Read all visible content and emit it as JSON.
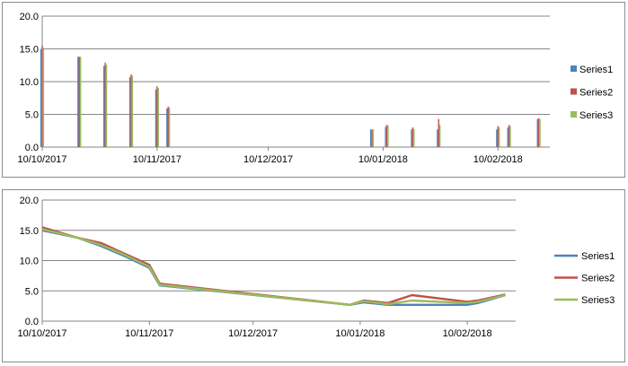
{
  "colors": {
    "series1": "#4f81bd",
    "series2": "#c0504d",
    "series3": "#9bbb59",
    "gridline": "#868686",
    "axis": "#868686",
    "frame_border": "#8c8c8c"
  },
  "chart_data": [
    {
      "type": "bar",
      "title": "",
      "xlabel": "",
      "ylabel": "",
      "x_axis_type": "date",
      "xlim": [
        "2017-10-10",
        "2018-02-24"
      ],
      "ylim": [
        0,
        20
      ],
      "y_ticks": [
        "0.0",
        "5.0",
        "10.0",
        "15.0",
        "20.0"
      ],
      "x_tick_labels": [
        "10/10/2017",
        "10/11/2017",
        "10/12/2017",
        "10/01/2018",
        "10/02/2018"
      ],
      "grid": true,
      "legend_position": "right",
      "x": [
        "2017-10-10",
        "2017-10-20",
        "2017-10-27",
        "2017-11-03",
        "2017-11-10",
        "2017-11-13",
        "2018-01-07",
        "2018-01-11",
        "2018-01-18",
        "2018-01-25",
        "2018-02-10",
        "2018-02-13",
        "2018-02-21"
      ],
      "series": [
        {
          "name": "Series1",
          "values": [
            15.0,
            13.8,
            12.4,
            10.7,
            8.8,
            5.9,
            2.7,
            3.1,
            2.7,
            2.7,
            2.7,
            3.0,
            4.3
          ]
        },
        {
          "name": "Series2",
          "values": [
            15.5,
            13.8,
            12.9,
            11.1,
            9.3,
            6.2,
            2.7,
            3.4,
            3.0,
            4.3,
            3.2,
            3.4,
            4.4
          ]
        },
        {
          "name": "Series3",
          "values": [
            15.2,
            13.8,
            12.6,
            10.9,
            9.0,
            6.0,
            2.7,
            3.3,
            2.8,
            3.4,
            3.0,
            3.2,
            4.3
          ]
        }
      ]
    },
    {
      "type": "line",
      "title": "",
      "xlabel": "",
      "ylabel": "",
      "x_axis_type": "date",
      "xlim": [
        "2017-10-10",
        "2018-02-24"
      ],
      "ylim": [
        0,
        20
      ],
      "y_ticks": [
        "0.0",
        "5.0",
        "10.0",
        "15.0",
        "20.0"
      ],
      "x_tick_labels": [
        "10/10/2017",
        "10/11/2017",
        "10/12/2017",
        "10/01/2018",
        "10/02/2018"
      ],
      "grid": true,
      "legend_position": "right",
      "x": [
        "2017-10-10",
        "2017-10-20",
        "2017-10-27",
        "2017-11-03",
        "2017-11-10",
        "2017-11-13",
        "2018-01-07",
        "2018-01-11",
        "2018-01-18",
        "2018-01-25",
        "2018-02-10",
        "2018-02-13",
        "2018-02-21"
      ],
      "series": [
        {
          "name": "Series1",
          "values": [
            15.0,
            13.8,
            12.4,
            10.7,
            8.8,
            5.9,
            2.7,
            3.1,
            2.7,
            2.7,
            2.7,
            3.0,
            4.3
          ]
        },
        {
          "name": "Series2",
          "values": [
            15.5,
            13.8,
            12.9,
            11.1,
            9.3,
            6.2,
            2.7,
            3.4,
            3.0,
            4.3,
            3.2,
            3.4,
            4.4
          ]
        },
        {
          "name": "Series3",
          "values": [
            15.2,
            13.8,
            12.6,
            10.9,
            9.0,
            6.0,
            2.7,
            3.3,
            2.8,
            3.4,
            3.0,
            3.2,
            4.3
          ]
        }
      ]
    }
  ]
}
